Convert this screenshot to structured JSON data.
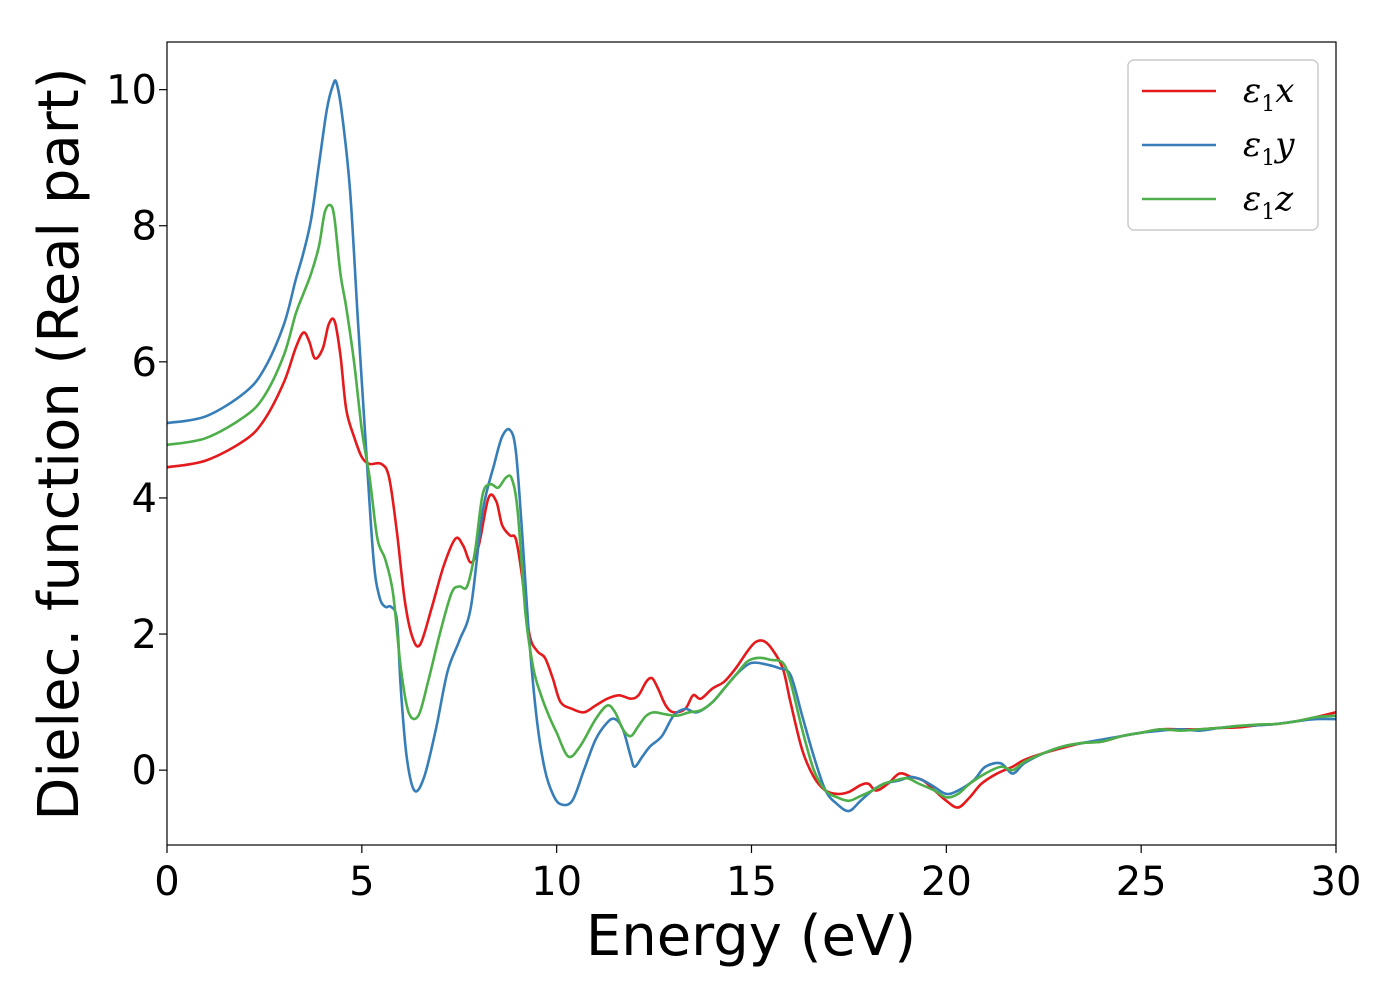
{
  "chart_data": {
    "type": "line",
    "title": "",
    "xlabel": "Energy (eV)",
    "ylabel": "Dielec. function (Real part)",
    "xlim": [
      0,
      30
    ],
    "ylim": [
      -1.1,
      10.7
    ],
    "xticks": [
      0,
      5,
      10,
      15,
      20,
      25,
      30
    ],
    "yticks": [
      0,
      2,
      4,
      6,
      8,
      10
    ],
    "grid": false,
    "legend_position": "top-right",
    "series": [
      {
        "name": "ε1x",
        "color": "#e41a1c",
        "x": [
          0,
          1,
          2,
          2.5,
          3,
          3.3,
          3.5,
          3.65,
          3.8,
          4.0,
          4.15,
          4.3,
          4.45,
          4.6,
          4.8,
          5.0,
          5.2,
          5.5,
          5.7,
          5.9,
          6.1,
          6.3,
          6.5,
          6.8,
          7.1,
          7.4,
          7.6,
          7.8,
          8.0,
          8.25,
          8.45,
          8.6,
          8.8,
          8.95,
          9.1,
          9.3,
          9.5,
          9.7,
          9.9,
          10.1,
          10.4,
          10.7,
          11.0,
          11.3,
          11.6,
          11.9,
          12.1,
          12.3,
          12.45,
          12.6,
          12.8,
          13.0,
          13.3,
          13.5,
          13.7,
          14.0,
          14.3,
          14.6,
          14.9,
          15.1,
          15.3,
          15.5,
          15.8,
          16.0,
          16.3,
          16.6,
          16.9,
          17.2,
          17.5,
          17.8,
          18.0,
          18.2,
          18.5,
          18.8,
          19.1,
          19.4,
          19.7,
          20.0,
          20.3,
          20.6,
          20.9,
          21.3,
          21.7,
          22.0,
          22.5,
          23.0,
          23.5,
          24.0,
          24.5,
          25.0,
          25.5,
          26.0,
          26.5,
          27.0,
          27.5,
          28.0,
          28.5,
          29.0,
          29.5,
          30.0
        ],
        "y": [
          4.45,
          4.55,
          4.85,
          5.15,
          5.7,
          6.2,
          6.43,
          6.3,
          6.05,
          6.2,
          6.55,
          6.6,
          6.1,
          5.3,
          4.9,
          4.6,
          4.5,
          4.5,
          4.3,
          3.5,
          2.5,
          1.95,
          1.85,
          2.4,
          3.0,
          3.4,
          3.3,
          3.05,
          3.3,
          4.0,
          3.95,
          3.6,
          3.45,
          3.4,
          2.9,
          2.0,
          1.75,
          1.65,
          1.35,
          1.0,
          0.9,
          0.85,
          0.95,
          1.05,
          1.1,
          1.05,
          1.1,
          1.3,
          1.35,
          1.2,
          0.95,
          0.85,
          0.9,
          1.1,
          1.05,
          1.2,
          1.3,
          1.5,
          1.75,
          1.88,
          1.9,
          1.8,
          1.5,
          1.0,
          0.3,
          -0.1,
          -0.3,
          -0.35,
          -0.32,
          -0.22,
          -0.2,
          -0.3,
          -0.2,
          -0.05,
          -0.1,
          -0.15,
          -0.3,
          -0.45,
          -0.55,
          -0.4,
          -0.2,
          -0.05,
          0.05,
          0.15,
          0.25,
          0.33,
          0.4,
          0.42,
          0.5,
          0.55,
          0.6,
          0.6,
          0.6,
          0.62,
          0.63,
          0.66,
          0.68,
          0.72,
          0.78,
          0.85
        ]
      },
      {
        "name": "ε1y",
        "color": "#377eb8",
        "x": [
          0,
          1,
          2,
          2.5,
          3,
          3.3,
          3.5,
          3.7,
          3.9,
          4.1,
          4.25,
          4.35,
          4.5,
          4.7,
          4.9,
          5.1,
          5.3,
          5.45,
          5.6,
          5.75,
          5.9,
          6.0,
          6.15,
          6.35,
          6.6,
          6.9,
          7.2,
          7.5,
          7.8,
          8.1,
          8.4,
          8.6,
          8.8,
          8.95,
          9.1,
          9.3,
          9.5,
          9.7,
          9.9,
          10.1,
          10.4,
          10.7,
          11.0,
          11.3,
          11.5,
          11.7,
          11.9,
          12.0,
          12.2,
          12.4,
          12.7,
          13.0,
          13.3,
          13.6,
          14.0,
          14.3,
          14.6,
          14.9,
          15.1,
          15.4,
          15.7,
          16.0,
          16.3,
          16.6,
          16.9,
          17.2,
          17.5,
          17.8,
          18.1,
          18.4,
          18.8,
          19.1,
          19.4,
          19.7,
          20.0,
          20.3,
          20.7,
          21.0,
          21.4,
          21.7,
          22.0,
          22.5,
          23.0,
          23.5,
          24.0,
          24.5,
          25.0,
          25.5,
          26.0,
          26.5,
          27.0,
          27.5,
          28.0,
          28.5,
          29.0,
          29.5,
          30.0
        ],
        "y": [
          5.1,
          5.2,
          5.55,
          5.9,
          6.55,
          7.2,
          7.6,
          8.1,
          8.9,
          9.7,
          10.05,
          10.1,
          9.6,
          8.5,
          6.6,
          4.8,
          3.1,
          2.55,
          2.4,
          2.4,
          2.2,
          1.2,
          0.2,
          -0.3,
          -0.1,
          0.6,
          1.45,
          1.9,
          2.4,
          3.8,
          4.5,
          4.9,
          5.0,
          4.7,
          3.6,
          1.9,
          0.7,
          0.0,
          -0.35,
          -0.5,
          -0.45,
          0.0,
          0.45,
          0.7,
          0.75,
          0.6,
          0.2,
          0.05,
          0.2,
          0.35,
          0.5,
          0.8,
          0.9,
          0.85,
          1.0,
          1.2,
          1.4,
          1.55,
          1.58,
          1.55,
          1.5,
          1.4,
          0.8,
          0.2,
          -0.3,
          -0.5,
          -0.6,
          -0.45,
          -0.3,
          -0.2,
          -0.15,
          -0.1,
          -0.15,
          -0.25,
          -0.35,
          -0.3,
          -0.15,
          0.05,
          0.1,
          -0.05,
          0.1,
          0.25,
          0.35,
          0.4,
          0.45,
          0.5,
          0.55,
          0.58,
          0.6,
          0.58,
          0.62,
          0.65,
          0.66,
          0.68,
          0.72,
          0.75,
          0.75
        ]
      },
      {
        "name": "ε1z",
        "color": "#4daf4a",
        "x": [
          0,
          1,
          2,
          2.5,
          3,
          3.3,
          3.5,
          3.7,
          3.9,
          4.05,
          4.2,
          4.3,
          4.45,
          4.6,
          4.8,
          5.0,
          5.2,
          5.4,
          5.6,
          5.8,
          6.0,
          6.2,
          6.45,
          6.7,
          7.0,
          7.3,
          7.5,
          7.7,
          7.9,
          8.1,
          8.3,
          8.5,
          8.7,
          8.85,
          9.0,
          9.2,
          9.4,
          9.6,
          9.8,
          10.0,
          10.3,
          10.6,
          11.0,
          11.3,
          11.5,
          11.7,
          11.9,
          12.1,
          12.3,
          12.5,
          12.8,
          13.1,
          13.4,
          13.7,
          14.0,
          14.3,
          14.6,
          14.9,
          15.2,
          15.5,
          15.8,
          16.0,
          16.3,
          16.6,
          16.9,
          17.2,
          17.5,
          17.8,
          18.1,
          18.4,
          18.7,
          19.0,
          19.3,
          19.7,
          20.0,
          20.3,
          20.6,
          21.0,
          21.4,
          21.7,
          22.0,
          22.5,
          23.0,
          23.5,
          24.0,
          24.5,
          25.0,
          25.5,
          26.0,
          26.5,
          27.0,
          27.5,
          28.0,
          28.5,
          29.0,
          29.5,
          30.0
        ],
        "y": [
          4.78,
          4.88,
          5.2,
          5.5,
          6.1,
          6.7,
          7.0,
          7.3,
          7.7,
          8.2,
          8.3,
          8.1,
          7.3,
          6.8,
          6.0,
          5.0,
          4.3,
          3.4,
          3.1,
          2.6,
          1.5,
          0.85,
          0.8,
          1.3,
          2.0,
          2.6,
          2.7,
          2.7,
          3.2,
          4.05,
          4.2,
          4.15,
          4.3,
          4.28,
          3.8,
          2.3,
          1.5,
          1.1,
          0.8,
          0.55,
          0.2,
          0.35,
          0.75,
          0.95,
          0.85,
          0.6,
          0.5,
          0.65,
          0.8,
          0.85,
          0.82,
          0.8,
          0.85,
          0.88,
          1.0,
          1.2,
          1.4,
          1.6,
          1.65,
          1.62,
          1.58,
          1.3,
          0.6,
          0.0,
          -0.3,
          -0.4,
          -0.45,
          -0.38,
          -0.3,
          -0.2,
          -0.15,
          -0.12,
          -0.2,
          -0.3,
          -0.4,
          -0.35,
          -0.2,
          -0.05,
          0.05,
          0.0,
          0.12,
          0.25,
          0.35,
          0.4,
          0.42,
          0.5,
          0.55,
          0.6,
          0.58,
          0.6,
          0.62,
          0.65,
          0.67,
          0.68,
          0.72,
          0.78,
          0.8
        ]
      }
    ]
  }
}
